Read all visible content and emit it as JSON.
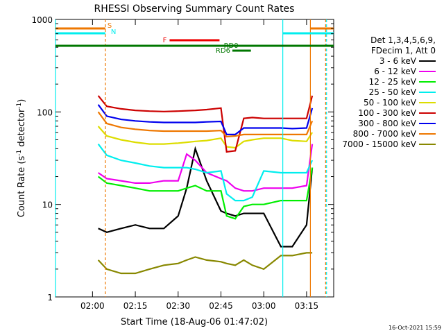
{
  "chart_data": {
    "type": "line",
    "title": "RHESSI Observing Summary Count Rates",
    "xlabel": "Start Time (18-Aug-06 01:47:02)",
    "ylabel": "Count Rate (s⁻¹ detector⁻¹)",
    "ylabel_main": "Count Rate (s",
    "ylabel_sup1": "-1",
    "ylabel_mid": " detector",
    "ylabel_sup2": "-1",
    "ylabel_end": ")",
    "y_scale": "log",
    "ylim": [
      1,
      1000
    ],
    "xlim": [
      "01:47:02",
      "03:24:30"
    ],
    "x_ticks": [
      "02:00",
      "02:15",
      "02:30",
      "02:45",
      "03:00",
      "03:15"
    ],
    "y_ticks": [
      "1",
      "10",
      "100",
      "1000"
    ],
    "legend_header": [
      "Det 1,3,4,5,6,9,",
      "FDecim 1, Att 0"
    ],
    "legend_placement": "right",
    "timestamp": "16-Oct-2021 15:59",
    "x": [
      "02:02",
      "02:05",
      "02:10",
      "02:15",
      "02:20",
      "02:25",
      "02:30",
      "02:33",
      "02:36",
      "02:40",
      "02:45",
      "02:47",
      "02:50",
      "02:53",
      "02:56",
      "03:00",
      "03:06",
      "03:10",
      "03:15",
      "03:17"
    ],
    "series": [
      {
        "name": "3 - 6 keV",
        "color": "#000000",
        "values": [
          5.5,
          5.0,
          5.5,
          6.0,
          5.5,
          5.5,
          7.5,
          15,
          40,
          18,
          8.5,
          8.0,
          7.5,
          8.0,
          8.0,
          8.0,
          3.5,
          3.5,
          6.0,
          25
        ]
      },
      {
        "name": "6 - 12 keV",
        "color": "#ee00ee",
        "values": [
          22,
          19,
          18,
          17,
          17,
          18,
          18,
          35,
          30,
          22,
          19,
          18,
          15,
          14,
          14,
          15,
          15,
          15,
          16,
          45
        ]
      },
      {
        "name": "12 - 25 keV",
        "color": "#00ee00",
        "values": [
          20,
          17,
          16,
          15,
          14,
          14,
          14,
          15,
          16,
          14,
          14,
          7.5,
          7.0,
          9.5,
          10,
          10,
          11,
          11,
          11,
          25
        ]
      },
      {
        "name": "25 - 50 keV",
        "color": "#00eeee",
        "values": [
          45,
          34,
          30,
          28,
          26,
          25,
          25,
          25,
          24,
          22,
          23,
          13,
          11,
          11,
          12,
          23,
          22,
          22,
          22,
          30
        ]
      },
      {
        "name": "50 - 100 keV",
        "color": "#dddd00",
        "values": [
          70,
          55,
          50,
          47,
          45,
          45,
          46,
          47,
          48,
          49,
          52,
          42,
          41,
          48,
          50,
          52,
          52,
          49,
          48,
          60
        ]
      },
      {
        "name": "100 - 300 keV",
        "color": "#cc0000",
        "values": [
          150,
          115,
          108,
          104,
          102,
          101,
          102,
          103,
          104,
          106,
          110,
          37,
          38,
          85,
          87,
          85,
          85,
          85,
          85,
          150
        ]
      },
      {
        "name": "300 - 800 keV",
        "color": "#0000ee",
        "values": [
          120,
          90,
          83,
          80,
          78,
          77,
          77,
          77,
          77,
          78,
          79,
          57,
          57,
          67,
          67,
          67,
          67,
          66,
          67,
          110
        ]
      },
      {
        "name": "800 - 7000 keV",
        "color": "#ee7700",
        "values": [
          100,
          75,
          68,
          65,
          63,
          62,
          62,
          62,
          62,
          62,
          63,
          54,
          55,
          57,
          57,
          57,
          57,
          57,
          57,
          80
        ]
      },
      {
        "name": "7000 - 15000 keV",
        "color": "#888800",
        "values": [
          2.5,
          2.0,
          1.8,
          1.8,
          2.0,
          2.2,
          2.3,
          2.5,
          2.7,
          2.5,
          2.4,
          2.3,
          2.2,
          2.5,
          2.2,
          2.0,
          2.8,
          2.8,
          3.0,
          3.0
        ]
      }
    ],
    "flags": [
      {
        "label": "S",
        "color": "#ee7700"
      },
      {
        "label": "N",
        "color": "#00eeee"
      },
      {
        "label": "F",
        "color": "#ee0000"
      },
      {
        "label": "RD0",
        "color": "#007700"
      },
      {
        "label": "RD6",
        "color": "#007700"
      }
    ]
  }
}
